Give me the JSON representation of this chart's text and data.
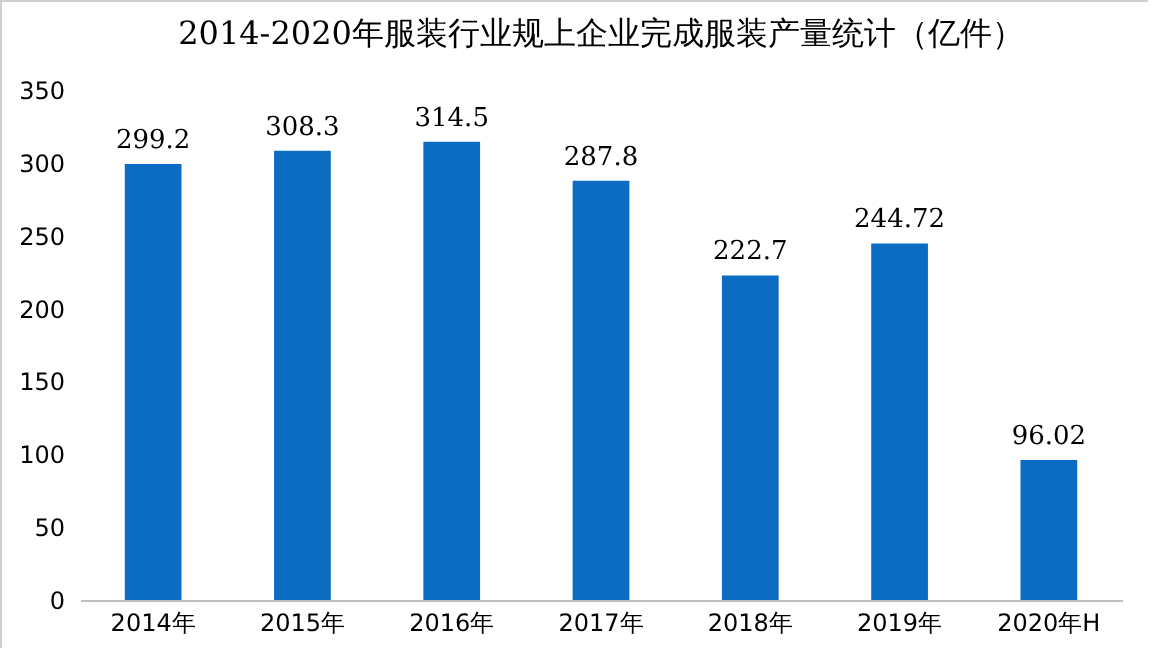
{
  "chart_data": {
    "type": "bar",
    "title": "2014-2020年服装行业规上企业完成服装产量统计（亿件）",
    "categories": [
      "2014年",
      "2015年",
      "2016年",
      "2017年",
      "2018年",
      "2019年",
      "2020年H"
    ],
    "values": [
      299.2,
      308.3,
      314.5,
      287.8,
      222.7,
      244.72,
      96.02
    ],
    "color": "#0b6cc1",
    "ylim": [
      0,
      350
    ],
    "yticks": [
      0,
      50,
      100,
      150,
      200,
      250,
      300,
      350
    ],
    "grid": false,
    "data_labels": true
  }
}
